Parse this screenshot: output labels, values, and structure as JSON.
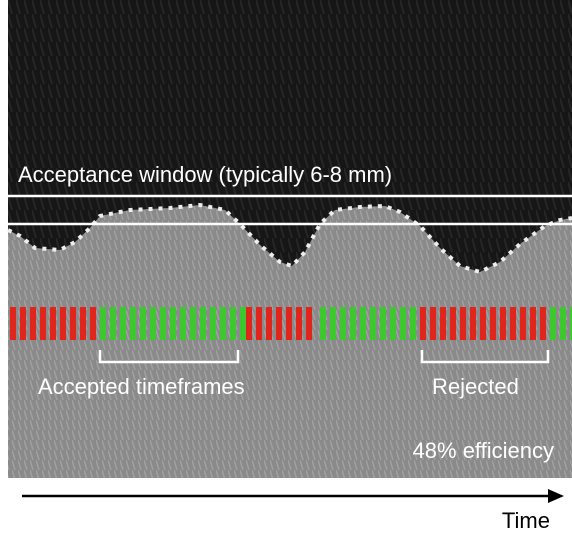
{
  "window_label": "Acceptance window (typically 6-8 mm)",
  "accepted_label": "Accepted timeframes",
  "rejected_label": "Rejected",
  "efficiency_label": "48% efficiency",
  "axis_label": "Time"
}
